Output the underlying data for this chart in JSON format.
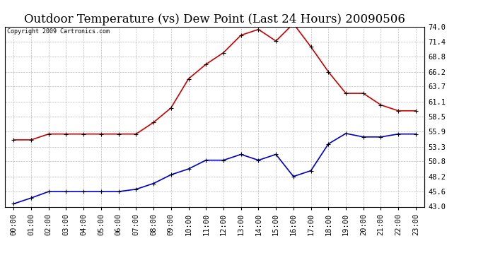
{
  "title": "Outdoor Temperature (vs) Dew Point (Last 24 Hours) 20090506",
  "copyright": "Copyright 2009 Cartronics.com",
  "hours": [
    "00:00",
    "01:00",
    "02:00",
    "03:00",
    "04:00",
    "05:00",
    "06:00",
    "07:00",
    "08:00",
    "09:00",
    "10:00",
    "11:00",
    "12:00",
    "13:00",
    "14:00",
    "15:00",
    "16:00",
    "17:00",
    "18:00",
    "19:00",
    "20:00",
    "21:00",
    "22:00",
    "23:00"
  ],
  "temp": [
    54.5,
    54.5,
    55.5,
    55.5,
    55.5,
    55.5,
    55.5,
    55.5,
    57.5,
    60.0,
    65.0,
    67.5,
    69.5,
    72.5,
    73.5,
    71.5,
    74.5,
    70.5,
    66.2,
    62.5,
    62.5,
    60.5,
    59.5,
    59.5
  ],
  "dewpoint": [
    43.5,
    44.5,
    45.6,
    45.6,
    45.6,
    45.6,
    45.6,
    46.0,
    47.0,
    48.5,
    49.5,
    51.0,
    51.0,
    52.0,
    51.0,
    52.0,
    48.2,
    49.2,
    53.8,
    55.6,
    55.0,
    55.0,
    55.5,
    55.5
  ],
  "temp_color": "#cc0000",
  "dewpoint_color": "#0000cc",
  "background_color": "#ffffff",
  "grid_color": "#aaaaaa",
  "ylim": [
    43.0,
    74.0
  ],
  "yticks": [
    43.0,
    45.6,
    48.2,
    50.8,
    53.3,
    55.9,
    58.5,
    61.1,
    63.7,
    66.2,
    68.8,
    71.4,
    74.0
  ],
  "title_fontsize": 12,
  "copyright_fontsize": 6,
  "tick_fontsize": 7.5,
  "marker": "+",
  "marker_size": 5,
  "linewidth": 1.2
}
